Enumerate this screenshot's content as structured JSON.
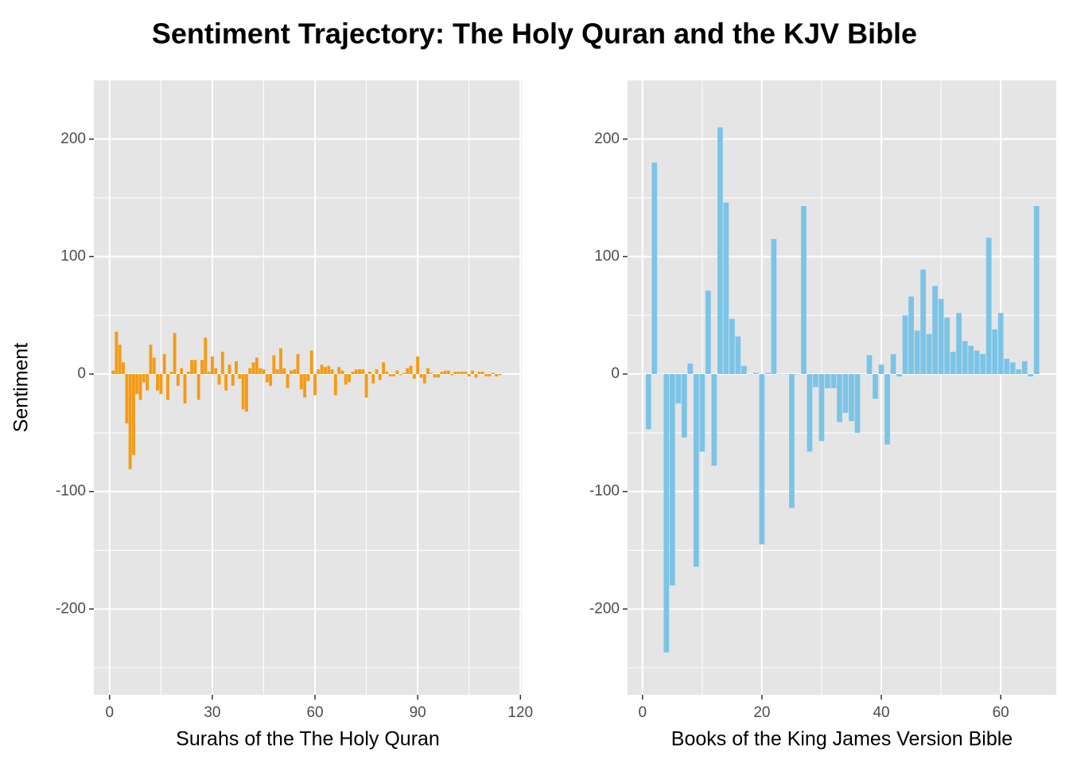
{
  "title": "Sentiment Trajectory: The Holy Quran and the KJV Bible",
  "ylabel": "Sentiment",
  "chart_data": [
    {
      "type": "bar",
      "xlabel": "Surahs of the The Holy Quran",
      "color": "#f59b14",
      "xlim": [
        -4.6,
        120.4
      ],
      "xticks": [
        0,
        30,
        60,
        90,
        120
      ],
      "ylim": [
        -273,
        250
      ],
      "yticks": [
        -200,
        -100,
        0,
        100,
        200
      ],
      "grid": true,
      "x": [
        1,
        2,
        3,
        4,
        5,
        6,
        7,
        8,
        9,
        10,
        11,
        12,
        13,
        14,
        15,
        16,
        17,
        18,
        19,
        20,
        21,
        22,
        23,
        24,
        25,
        26,
        27,
        28,
        29,
        30,
        31,
        32,
        33,
        34,
        35,
        36,
        37,
        38,
        39,
        40,
        41,
        42,
        43,
        44,
        45,
        46,
        47,
        48,
        49,
        50,
        51,
        52,
        53,
        54,
        55,
        56,
        57,
        58,
        59,
        60,
        61,
        62,
        63,
        64,
        65,
        66,
        67,
        68,
        69,
        70,
        71,
        72,
        73,
        74,
        75,
        76,
        77,
        78,
        79,
        80,
        81,
        82,
        83,
        84,
        85,
        86,
        87,
        88,
        89,
        90,
        91,
        92,
        93,
        94,
        95,
        96,
        97,
        98,
        99,
        100,
        101,
        102,
        103,
        104,
        105,
        106,
        107,
        108,
        109,
        110,
        111,
        112,
        113,
        114
      ],
      "values": [
        3,
        36,
        25,
        10,
        -42,
        -81,
        -69,
        -17,
        -22,
        -7,
        -14,
        25,
        14,
        -14,
        -17,
        17,
        -22,
        2,
        35,
        -10,
        5,
        -25,
        2,
        12,
        12,
        -22,
        12,
        31,
        2,
        15,
        5,
        -9,
        19,
        -14,
        8,
        -10,
        11,
        -4,
        -30,
        -32,
        5,
        10,
        14,
        5,
        4,
        -7,
        -10,
        16,
        4,
        22,
        5,
        -12,
        3,
        4,
        17,
        -13,
        -20,
        -6,
        20,
        -18,
        4,
        8,
        6,
        7,
        4,
        -18,
        6,
        3,
        -9,
        -7,
        2,
        4,
        4,
        4,
        -20,
        2,
        -8,
        4,
        -5,
        10,
        2,
        -2,
        -2,
        3,
        -1,
        1,
        5,
        7,
        -4,
        15,
        -3,
        -8,
        5,
        1,
        -3,
        -3,
        2,
        3,
        3,
        -1,
        2,
        2,
        2,
        2,
        -2,
        3,
        -3,
        2,
        2,
        -2,
        -2,
        1,
        -2,
        -1
      ]
    },
    {
      "type": "bar",
      "xlabel": "Books of the King James Version Bible",
      "color": "#7cc4e6",
      "xlim": [
        -2.5,
        69.3
      ],
      "xticks": [
        0,
        20,
        40,
        60
      ],
      "ylim": [
        -273,
        250
      ],
      "yticks": [
        -200,
        -100,
        0,
        100,
        200
      ],
      "grid": true,
      "x": [
        1,
        2,
        3,
        4,
        5,
        6,
        7,
        8,
        9,
        10,
        11,
        12,
        13,
        14,
        15,
        16,
        17,
        18,
        19,
        20,
        21,
        22,
        23,
        24,
        25,
        26,
        27,
        28,
        29,
        30,
        31,
        32,
        33,
        34,
        35,
        36,
        37,
        38,
        39,
        40,
        41,
        42,
        43,
        44,
        45,
        46,
        47,
        48,
        49,
        50,
        51,
        52,
        53,
        54,
        55,
        56,
        57,
        58,
        59,
        60,
        61,
        62,
        63,
        64,
        65,
        66
      ],
      "values": [
        -47,
        180,
        0,
        -237,
        -180,
        -25,
        -54,
        9,
        -164,
        -66,
        71,
        -78,
        210,
        146,
        47,
        32,
        7,
        0,
        1,
        -145,
        1,
        115,
        0,
        0,
        -114,
        0,
        143,
        -66,
        -11,
        -57,
        -12,
        -12,
        -41,
        -33,
        -40,
        -50,
        0,
        16,
        -21,
        8,
        -60,
        17,
        -2,
        50,
        66,
        37,
        89,
        34,
        75,
        64,
        48,
        19,
        52,
        28,
        24,
        20,
        17,
        116,
        38,
        52,
        13,
        10,
        4,
        11,
        -2,
        143
      ]
    }
  ]
}
